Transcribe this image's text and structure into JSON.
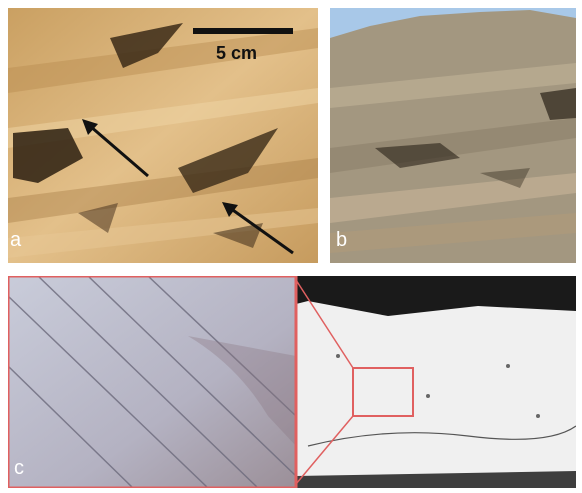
{
  "figure": {
    "panel_a": {
      "label": "a",
      "scale_bar_text": "5 cm"
    },
    "panel_b": {
      "label": "b"
    },
    "panel_c": {
      "label": "c"
    }
  },
  "colors": {
    "rock_a": "#d9b070",
    "rock_b": "#a89a82",
    "sky": "#a8c8e8",
    "inset_border": "#e06060",
    "micro_left": "#b9bccb",
    "micro_right": "#eeeeee"
  }
}
